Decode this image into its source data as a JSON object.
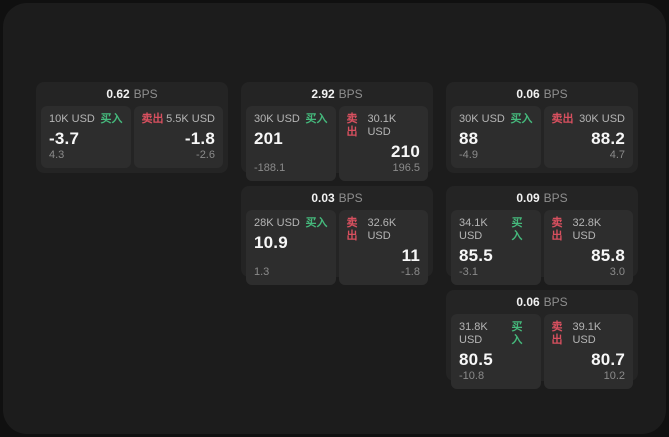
{
  "labels": {
    "buy": "买入",
    "sell": "卖出",
    "bps": "BPS"
  },
  "colors": {
    "backdrop": "#101010",
    "window_bg": "#1c1c1c",
    "card_bg": "#242424",
    "panel_bg": "#2d2d2d",
    "buy_green": "#45b97c",
    "sell_red": "#d8505f",
    "value_white": "#f7f7f7",
    "label_gray": "#b5b5b5",
    "sub_gray": "#8b8b8b"
  },
  "cards": [
    {
      "bps": "0.62",
      "buy": {
        "amount": "10K USD",
        "value": "-3.7",
        "sub": "4.3"
      },
      "sell": {
        "amount": "5.5K USD",
        "value": "-1.8",
        "sub": "-2.6"
      }
    },
    {
      "bps": "2.92",
      "buy": {
        "amount": "30K USD",
        "value": "201",
        "sub": "-188.1"
      },
      "sell": {
        "amount": "30.1K USD",
        "value": "210",
        "sub": "196.5"
      }
    },
    {
      "bps": "0.06",
      "buy": {
        "amount": "30K USD",
        "value": "88",
        "sub": "-4.9"
      },
      "sell": {
        "amount": "30K USD",
        "value": "88.2",
        "sub": "4.7"
      }
    },
    {
      "bps": "0.03",
      "buy": {
        "amount": "28K USD",
        "value": "10.9",
        "sub": "1.3"
      },
      "sell": {
        "amount": "32.6K USD",
        "value": "11",
        "sub": "-1.8"
      }
    },
    {
      "bps": "0.09",
      "buy": {
        "amount": "34.1K USD",
        "value": "85.5",
        "sub": "-3.1"
      },
      "sell": {
        "amount": "32.8K USD",
        "value": "85.8",
        "sub": "3.0"
      }
    },
    {
      "bps": "0.06",
      "buy": {
        "amount": "31.8K USD",
        "value": "80.5",
        "sub": "-10.8"
      },
      "sell": {
        "amount": "39.1K USD",
        "value": "80.7",
        "sub": "10.2"
      }
    }
  ]
}
